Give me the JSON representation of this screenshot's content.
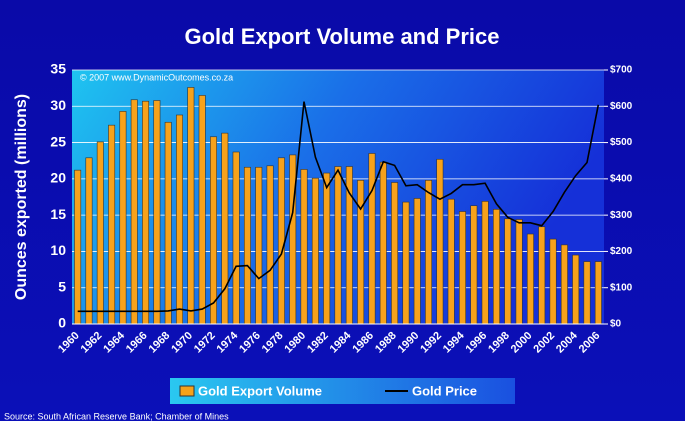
{
  "chart_data": {
    "type": "bar-line",
    "title": "Gold Export Volume and Price",
    "ylabel": "Ounces exported (millions)",
    "annotation": "© 2007 www.DynamicOutcomes.co.za",
    "source": "Source:  South African Reserve Bank; Chamber of Mines",
    "categories": [
      "1960",
      null,
      "1962",
      null,
      "1964",
      null,
      "1966",
      null,
      "1968",
      null,
      "1970",
      null,
      "1972",
      null,
      "1974",
      null,
      "1976",
      null,
      "1978",
      null,
      "1980",
      null,
      "1982",
      null,
      "1984",
      null,
      "1986",
      null,
      "1988",
      null,
      "1990",
      null,
      "1992",
      null,
      "1994",
      null,
      "1996",
      null,
      "1998",
      null,
      "2000",
      null,
      "2002",
      null,
      "2004",
      null,
      "2006"
    ],
    "series": [
      {
        "name": "Gold Export Volume",
        "type": "bar",
        "color": "#f7a21b",
        "values": [
          21.2,
          22.9,
          25.1,
          27.4,
          29.3,
          30.9,
          30.7,
          30.8,
          27.8,
          28.8,
          32.6,
          31.5,
          25.8,
          26.3,
          23.7,
          21.6,
          21.6,
          21.8,
          22.9,
          23.3,
          21.3,
          20.1,
          20.8,
          21.7,
          21.7,
          19.8,
          23.5,
          22.3,
          19.5,
          16.8,
          17.3,
          19.8,
          22.7,
          17.2,
          15.5,
          16.3,
          16.9,
          15.8,
          14.5,
          14.4,
          12.4,
          13.4,
          11.7,
          10.9,
          9.5,
          8.6,
          8.6
        ]
      },
      {
        "name": "Gold Price",
        "type": "line",
        "axis": "y2",
        "color": "#000000",
        "values": [
          35,
          35,
          35,
          35,
          35,
          35,
          35,
          35,
          36,
          41,
          36,
          41,
          58,
          97,
          159,
          161,
          125,
          148,
          193,
          307,
          613,
          460,
          376,
          424,
          361,
          317,
          368,
          447,
          437,
          381,
          384,
          362,
          344,
          360,
          384,
          384,
          388,
          331,
          294,
          279,
          279,
          271,
          310,
          363,
          409,
          445,
          604
        ]
      }
    ],
    "ylim": [
      0,
      35
    ],
    "yticks": [
      0,
      5,
      10,
      15,
      20,
      25,
      30,
      35
    ],
    "y2lim": [
      0,
      700
    ],
    "y2ticks": [
      {
        "value": 0,
        "label": "$0"
      },
      {
        "value": 100,
        "label": "$100"
      },
      {
        "value": 200,
        "label": "$200"
      },
      {
        "value": 300,
        "label": "$300"
      },
      {
        "value": 400,
        "label": "$400"
      },
      {
        "value": 500,
        "label": "$500"
      },
      {
        "value": 600,
        "label": "$600"
      },
      {
        "value": 700,
        "label": "$700"
      }
    ],
    "grid": true
  }
}
